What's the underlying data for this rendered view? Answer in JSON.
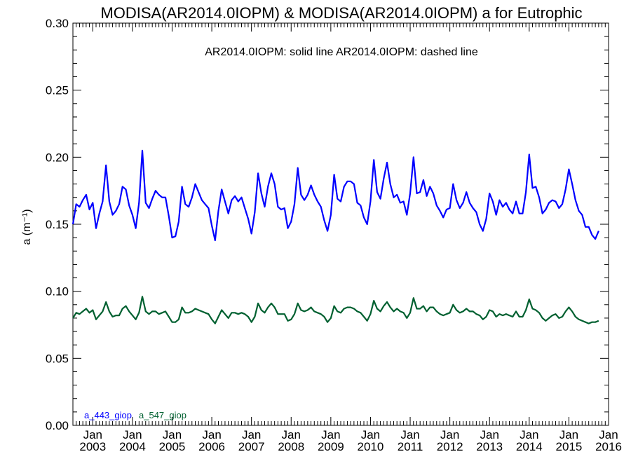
{
  "chart_data": {
    "type": "line",
    "title": "MODISA(AR2014.0IOPM) & MODISA(AR2014.0IOPM)  a for Eutrophic",
    "subtitle": "AR2014.0IOPM: solid line   AR2014.0IOPM: dashed line",
    "ylabel": "a (m⁻¹)",
    "xlabel": "",
    "xlim": [
      2002.5,
      2016.0
    ],
    "ylim": [
      0.0,
      0.3
    ],
    "y_ticks": [
      "0.00",
      "0.05",
      "0.10",
      "0.15",
      "0.20",
      "0.25",
      "0.30"
    ],
    "x_ticks": [
      {
        "top": "Jan",
        "bottom": "2003",
        "x": 2003
      },
      {
        "top": "Jan",
        "bottom": "2004",
        "x": 2004
      },
      {
        "top": "Jan",
        "bottom": "2005",
        "x": 2005
      },
      {
        "top": "Jan",
        "bottom": "2006",
        "x": 2006
      },
      {
        "top": "Jan",
        "bottom": "2007",
        "x": 2007
      },
      {
        "top": "Jan",
        "bottom": "2008",
        "x": 2008
      },
      {
        "top": "Jan",
        "bottom": "2009",
        "x": 2009
      },
      {
        "top": "Jan",
        "bottom": "2010",
        "x": 2010
      },
      {
        "top": "Jan",
        "bottom": "2011",
        "x": 2011
      },
      {
        "top": "Jan",
        "bottom": "2012",
        "x": 2012
      },
      {
        "top": "Jan",
        "bottom": "2013",
        "x": 2013
      },
      {
        "top": "Jan",
        "bottom": "2014",
        "x": 2014
      },
      {
        "top": "Jan",
        "bottom": "2015",
        "x": 2015
      },
      {
        "top": "Jan",
        "bottom": "2016",
        "x": 2016
      }
    ],
    "grid": false,
    "legend": "bottom-left",
    "series": [
      {
        "name": "a_443_giop",
        "color": "#0000ff",
        "style": "solid",
        "x_start": 2002.5,
        "x_step_months": 1,
        "values": [
          0.15,
          0.165,
          0.163,
          0.168,
          0.172,
          0.161,
          0.166,
          0.147,
          0.158,
          0.167,
          0.194,
          0.167,
          0.157,
          0.16,
          0.165,
          0.178,
          0.176,
          0.164,
          0.157,
          0.147,
          0.166,
          0.205,
          0.166,
          0.162,
          0.169,
          0.175,
          0.172,
          0.17,
          0.17,
          0.156,
          0.14,
          0.141,
          0.152,
          0.178,
          0.165,
          0.163,
          0.17,
          0.18,
          0.174,
          0.168,
          0.165,
          0.162,
          0.149,
          0.138,
          0.16,
          0.176,
          0.167,
          0.158,
          0.168,
          0.171,
          0.167,
          0.17,
          0.162,
          0.154,
          0.143,
          0.159,
          0.188,
          0.173,
          0.163,
          0.178,
          0.188,
          0.18,
          0.163,
          0.161,
          0.162,
          0.147,
          0.152,
          0.165,
          0.192,
          0.172,
          0.168,
          0.172,
          0.179,
          0.172,
          0.167,
          0.163,
          0.153,
          0.145,
          0.157,
          0.187,
          0.169,
          0.167,
          0.178,
          0.182,
          0.182,
          0.18,
          0.166,
          0.164,
          0.155,
          0.15,
          0.167,
          0.198,
          0.174,
          0.169,
          0.184,
          0.196,
          0.18,
          0.17,
          0.172,
          0.166,
          0.167,
          0.157,
          0.173,
          0.2,
          0.173,
          0.174,
          0.183,
          0.171,
          0.178,
          0.173,
          0.164,
          0.16,
          0.155,
          0.161,
          0.162,
          0.18,
          0.168,
          0.162,
          0.166,
          0.174,
          0.166,
          0.162,
          0.159,
          0.15,
          0.145,
          0.154,
          0.173,
          0.167,
          0.157,
          0.168,
          0.163,
          0.166,
          0.161,
          0.158,
          0.167,
          0.158,
          0.158,
          0.174,
          0.202,
          0.177,
          0.178,
          0.17,
          0.158,
          0.161,
          0.166,
          0.168,
          0.167,
          0.162,
          0.165,
          0.176,
          0.191,
          0.18,
          0.168,
          0.16,
          0.157,
          0.148,
          0.148,
          0.142,
          0.139,
          0.145
        ]
      },
      {
        "name": "a_547_giop",
        "color": "#006030",
        "style": "solid",
        "x_start": 2002.5,
        "x_step_months": 1,
        "values": [
          0.08,
          0.084,
          0.083,
          0.085,
          0.087,
          0.084,
          0.086,
          0.079,
          0.082,
          0.085,
          0.092,
          0.085,
          0.081,
          0.082,
          0.082,
          0.087,
          0.089,
          0.085,
          0.082,
          0.079,
          0.084,
          0.096,
          0.085,
          0.083,
          0.085,
          0.085,
          0.083,
          0.084,
          0.085,
          0.081,
          0.077,
          0.077,
          0.079,
          0.088,
          0.084,
          0.084,
          0.085,
          0.087,
          0.086,
          0.085,
          0.084,
          0.083,
          0.079,
          0.076,
          0.081,
          0.086,
          0.083,
          0.08,
          0.084,
          0.084,
          0.083,
          0.084,
          0.083,
          0.081,
          0.077,
          0.081,
          0.091,
          0.086,
          0.084,
          0.088,
          0.091,
          0.088,
          0.083,
          0.083,
          0.083,
          0.078,
          0.079,
          0.083,
          0.091,
          0.086,
          0.085,
          0.086,
          0.088,
          0.085,
          0.084,
          0.083,
          0.081,
          0.077,
          0.08,
          0.089,
          0.085,
          0.084,
          0.087,
          0.088,
          0.088,
          0.087,
          0.085,
          0.084,
          0.081,
          0.078,
          0.083,
          0.093,
          0.087,
          0.085,
          0.089,
          0.092,
          0.088,
          0.085,
          0.087,
          0.085,
          0.084,
          0.08,
          0.084,
          0.095,
          0.087,
          0.087,
          0.089,
          0.085,
          0.088,
          0.088,
          0.085,
          0.083,
          0.082,
          0.083,
          0.084,
          0.09,
          0.086,
          0.084,
          0.085,
          0.087,
          0.085,
          0.085,
          0.083,
          0.082,
          0.079,
          0.081,
          0.086,
          0.085,
          0.081,
          0.083,
          0.082,
          0.083,
          0.082,
          0.081,
          0.085,
          0.081,
          0.081,
          0.086,
          0.094,
          0.087,
          0.086,
          0.084,
          0.08,
          0.078,
          0.08,
          0.082,
          0.083,
          0.08,
          0.081,
          0.085,
          0.088,
          0.085,
          0.081,
          0.079,
          0.078,
          0.077,
          0.076,
          0.077,
          0.077,
          0.078
        ]
      }
    ]
  }
}
